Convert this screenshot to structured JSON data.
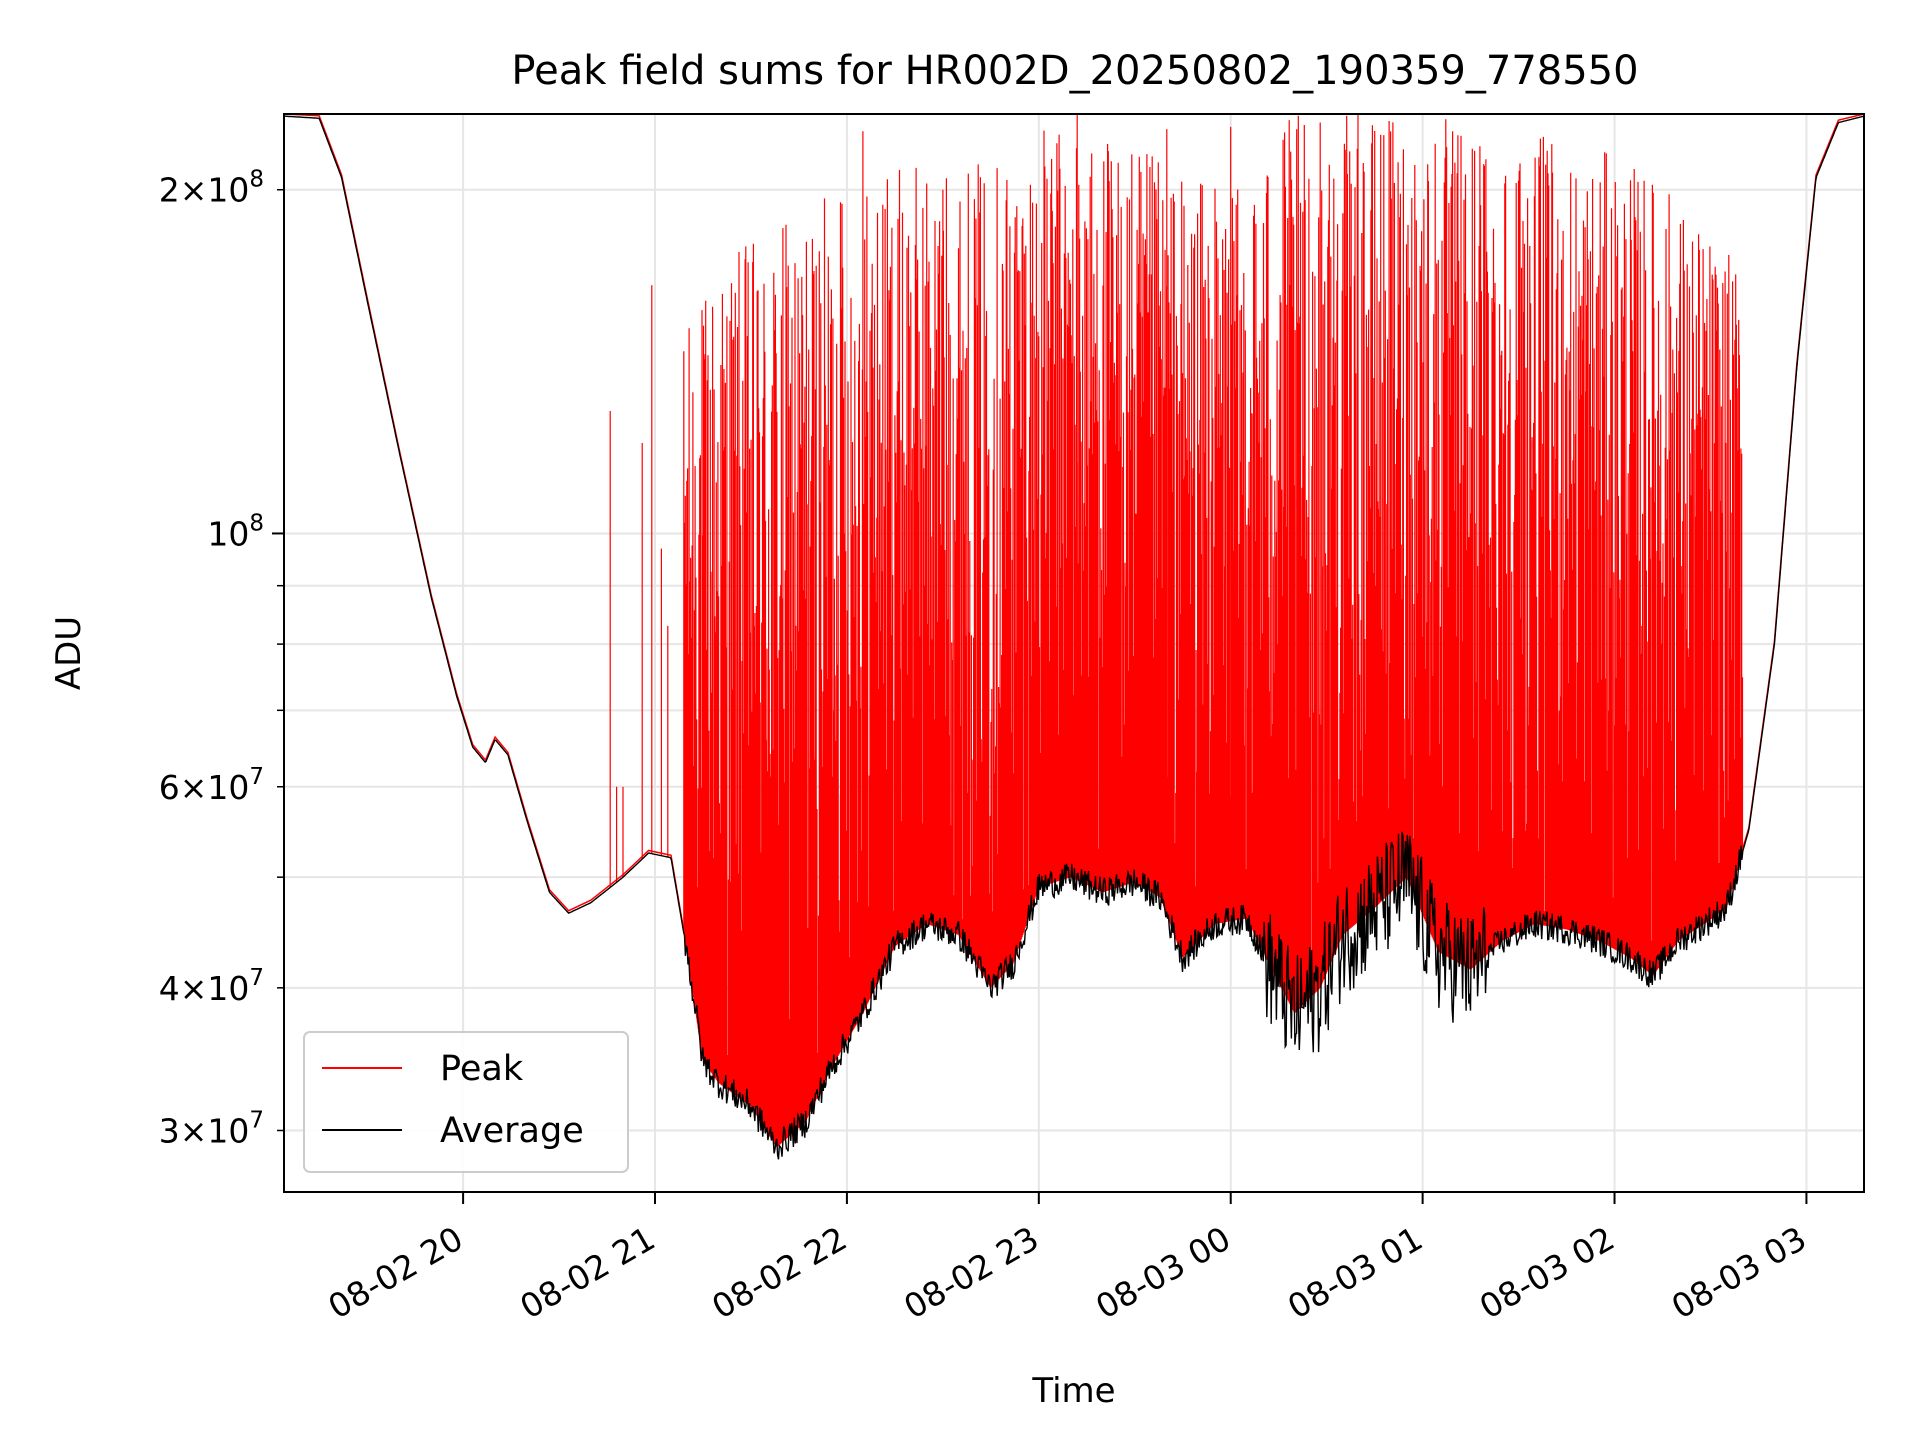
{
  "chart_data": {
    "type": "line",
    "title": "Peak field sums for HR002D_20250802_190359_778550",
    "xlabel": "Time",
    "ylabel": "ADU",
    "yscale": "log",
    "xlim": [
      "2025-08-02T19:04:00",
      "2025-08-03T03:18:00"
    ],
    "ylim": [
      26500000,
      233000000
    ],
    "grid": true,
    "legend": {
      "placement": "lower-left",
      "entries": [
        {
          "label": "Peak",
          "color": "#ff0000"
        },
        {
          "label": "Average",
          "color": "#000000"
        }
      ]
    },
    "x_ticks": [
      {
        "t": "2025-08-02T20:00:00",
        "label": "08-02 20"
      },
      {
        "t": "2025-08-02T21:00:00",
        "label": "08-02 21"
      },
      {
        "t": "2025-08-02T22:00:00",
        "label": "08-02 22"
      },
      {
        "t": "2025-08-02T23:00:00",
        "label": "08-02 23"
      },
      {
        "t": "2025-08-03T00:00:00",
        "label": "08-03 00"
      },
      {
        "t": "2025-08-03T01:00:00",
        "label": "08-03 01"
      },
      {
        "t": "2025-08-03T02:00:00",
        "label": "08-03 02"
      },
      {
        "t": "2025-08-03T03:00:00",
        "label": "08-03 03"
      }
    ],
    "y_major_ticks": [
      {
        "v": 100000000,
        "base": "10",
        "exp": "8",
        "mant": ""
      }
    ],
    "y_minor_ticks": [
      {
        "v": 30000000,
        "mant": "3",
        "exp": "7",
        "labeled": true
      },
      {
        "v": 40000000,
        "mant": "4",
        "exp": "7",
        "labeled": true
      },
      {
        "v": 50000000,
        "labeled": false
      },
      {
        "v": 60000000,
        "mant": "6",
        "exp": "7",
        "labeled": true
      },
      {
        "v": 70000000,
        "labeled": false
      },
      {
        "v": 80000000,
        "labeled": false
      },
      {
        "v": 90000000,
        "labeled": false
      },
      {
        "v": 200000000,
        "mant": "2",
        "exp": "8",
        "labeled": true
      }
    ],
    "series": [
      {
        "name": "Average",
        "color": "#000000",
        "x": [
          "2025-08-02T19:04:00",
          "2025-08-02T19:15:00",
          "2025-08-02T19:22:00",
          "2025-08-02T19:30:00",
          "2025-08-02T19:40:00",
          "2025-08-02T19:50:00",
          "2025-08-02T19:58:00",
          "2025-08-02T20:03:00",
          "2025-08-02T20:07:00",
          "2025-08-02T20:10:00",
          "2025-08-02T20:14:00",
          "2025-08-02T20:20:00",
          "2025-08-02T20:27:00",
          "2025-08-02T20:33:00",
          "2025-08-02T20:40:00",
          "2025-08-02T20:50:00",
          "2025-08-02T20:58:00",
          "2025-08-02T21:05:00",
          "2025-08-02T21:10:00",
          "2025-08-02T21:15:00",
          "2025-08-02T21:20:00",
          "2025-08-02T21:30:00",
          "2025-08-02T21:38:00",
          "2025-08-02T21:47:00",
          "2025-08-02T21:55:00",
          "2025-08-02T22:05:00",
          "2025-08-02T22:15:00",
          "2025-08-02T22:25:00",
          "2025-08-02T22:35:00",
          "2025-08-02T22:45:00",
          "2025-08-02T22:52:00",
          "2025-08-02T23:00:00",
          "2025-08-02T23:10:00",
          "2025-08-02T23:20:00",
          "2025-08-02T23:30:00",
          "2025-08-02T23:38:00",
          "2025-08-02T23:45:00",
          "2025-08-02T23:55:00",
          "2025-08-03T00:05:00",
          "2025-08-03T00:12:00",
          "2025-08-03T00:20:00",
          "2025-08-03T00:28:00",
          "2025-08-03T00:35:00",
          "2025-08-03T00:45:00",
          "2025-08-03T00:55:00",
          "2025-08-03T01:05:00",
          "2025-08-03T01:15:00",
          "2025-08-03T01:25:00",
          "2025-08-03T01:35:00",
          "2025-08-03T01:45:00",
          "2025-08-03T01:55:00",
          "2025-08-03T02:05:00",
          "2025-08-03T02:12:00",
          "2025-08-03T02:20:00",
          "2025-08-03T02:28:00",
          "2025-08-03T02:35:00",
          "2025-08-03T02:42:00",
          "2025-08-03T02:50:00",
          "2025-08-03T02:57:00",
          "2025-08-03T03:03:00",
          "2025-08-03T03:10:00",
          "2025-08-03T03:18:00"
        ],
        "y": [
          232000000,
          231000000,
          205000000,
          160000000,
          118000000,
          88000000,
          72000000,
          65000000,
          63000000,
          66000000,
          64000000,
          56000000,
          48500000,
          46500000,
          47500000,
          50000000,
          52500000,
          52000000,
          43000000,
          34500000,
          33000000,
          31500000,
          29000000,
          30500000,
          34000000,
          38000000,
          43500000,
          45500000,
          44500000,
          40000000,
          42000000,
          49000000,
          50000000,
          48500000,
          49500000,
          48000000,
          42500000,
          45500000,
          46000000,
          42000000,
          38000000,
          40000000,
          44500000,
          47000000,
          50000000,
          43000000,
          41500000,
          44000000,
          45500000,
          45000000,
          44000000,
          42500000,
          41000000,
          44000000,
          45500000,
          47000000,
          55000000,
          80000000,
          140000000,
          205000000,
          229000000,
          232000000
        ]
      },
      {
        "name": "Peak",
        "color": "#ff0000",
        "spikes": [
          {
            "t": "2025-08-02T20:46:00",
            "v": 128000000
          },
          {
            "t": "2025-08-02T20:48:00",
            "v": 60000000
          },
          {
            "t": "2025-08-02T20:50:00",
            "v": 60000000
          },
          {
            "t": "2025-08-02T20:56:00",
            "v": 120000000
          },
          {
            "t": "2025-08-02T20:59:00",
            "v": 165000000
          },
          {
            "t": "2025-08-02T21:02:00",
            "v": 97000000
          },
          {
            "t": "2025-08-02T21:04:00",
            "v": 83000000
          },
          {
            "t": "2025-08-02T21:58:00",
            "v": 195000000
          },
          {
            "t": "2025-08-02T22:05:00",
            "v": 225000000
          },
          {
            "t": "2025-08-02T22:30:00",
            "v": 200000000
          },
          {
            "t": "2025-08-02T22:43:00",
            "v": 58000000
          },
          {
            "t": "2025-08-02T22:49:00",
            "v": 52000000
          },
          {
            "t": "2025-08-02T23:12:00",
            "v": 233000000
          },
          {
            "t": "2025-08-02T23:40:00",
            "v": 226000000
          },
          {
            "t": "2025-08-03T00:00:00",
            "v": 227000000
          }
        ],
        "upper_envelope": {
          "x": [
            "2025-08-02T21:09:00",
            "2025-08-02T21:20:00",
            "2025-08-02T21:35:00",
            "2025-08-02T21:50:00",
            "2025-08-02T22:05:00",
            "2025-08-02T22:20:00",
            "2025-08-02T22:35:00",
            "2025-08-02T22:50:00",
            "2025-08-02T23:05:00",
            "2025-08-02T23:20:00",
            "2025-08-02T23:35:00",
            "2025-08-02T23:50:00",
            "2025-08-03T00:05:00",
            "2025-08-03T00:15:00",
            "2025-08-03T00:30:00",
            "2025-08-03T00:45:00",
            "2025-08-03T01:00:00",
            "2025-08-03T01:20:00",
            "2025-08-03T01:40:00",
            "2025-08-03T02:00:00",
            "2025-08-03T02:15:00",
            "2025-08-03T02:25:00",
            "2025-08-03T02:40:00"
          ],
          "y": [
            150000000,
            175000000,
            185000000,
            195000000,
            205000000,
            212000000,
            208000000,
            220000000,
            228000000,
            225000000,
            215000000,
            205000000,
            200000000,
            232000000,
            233000000,
            233000000,
            233000000,
            230000000,
            222000000,
            215000000,
            205000000,
            190000000,
            170000000
          ]
        }
      }
    ]
  }
}
